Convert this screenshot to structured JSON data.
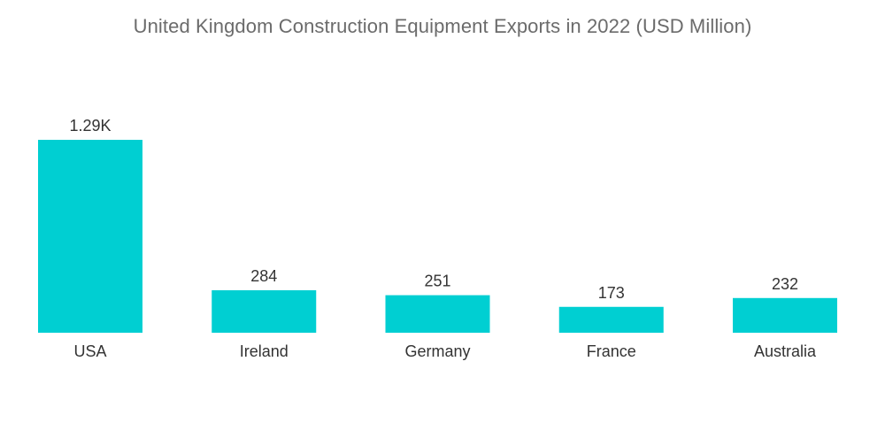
{
  "chart_data": {
    "type": "bar",
    "title": "United Kingdom Construction Equipment Exports in 2022 (USD Million)",
    "categories": [
      "USA",
      "Ireland",
      "Germany",
      "France",
      "Australia"
    ],
    "values": [
      1290,
      284,
      251,
      173,
      232
    ],
    "data_labels": [
      "1.29K",
      "284",
      "251",
      "173",
      "232"
    ],
    "xlabel": "",
    "ylabel": "",
    "ylim": [
      0,
      1290
    ],
    "grid": false,
    "legend": "none",
    "bar_color": "#00cfd2"
  }
}
